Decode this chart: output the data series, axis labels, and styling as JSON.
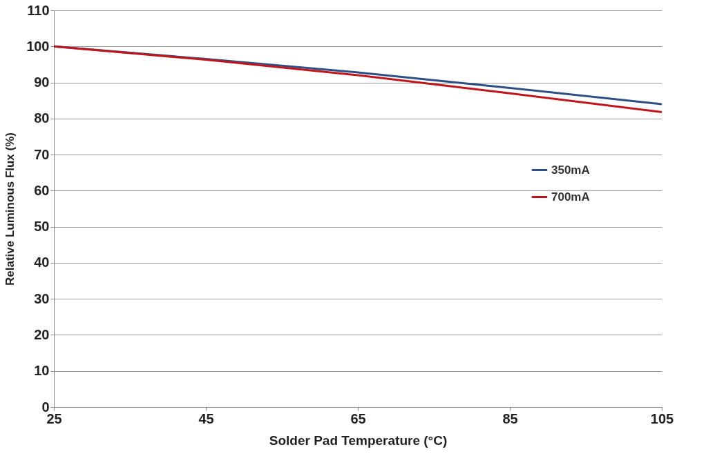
{
  "chart_data": {
    "type": "line",
    "xlabel": "Solder Pad Temperature (°C)",
    "ylabel": "Relative Luminous Flux (%)",
    "x": [
      25,
      45,
      65,
      85,
      105
    ],
    "series": [
      {
        "name": "350mA",
        "color": "#2e4f86",
        "values": [
          100,
          96.5,
          92.8,
          88.5,
          84
        ]
      },
      {
        "name": "700mA",
        "color": "#c0161b",
        "values": [
          100,
          96.3,
          92,
          87,
          81.8
        ]
      }
    ],
    "xlim": [
      25,
      105
    ],
    "xticks": [
      25,
      45,
      65,
      85,
      105
    ],
    "ylim": [
      0,
      110
    ],
    "yticks": [
      0,
      10,
      20,
      30,
      40,
      50,
      60,
      70,
      80,
      90,
      100,
      110
    ],
    "grid": "y",
    "legend": "right",
    "marker": "none",
    "line_style": "solid"
  }
}
